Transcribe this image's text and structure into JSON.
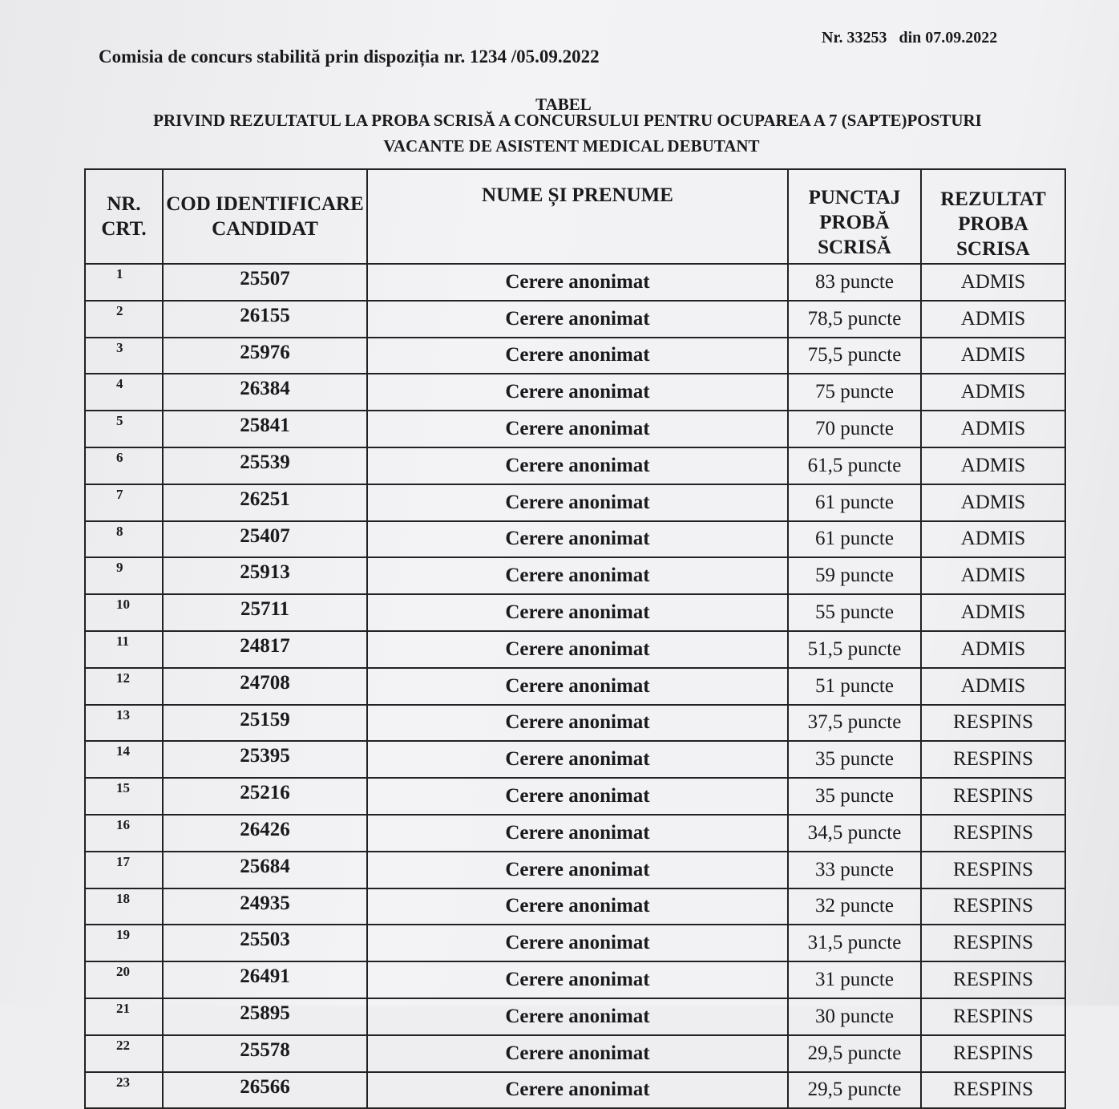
{
  "header": {
    "doc_number": "Nr. 33253   din 07.09.2022",
    "commission": "Comisia de concurs stabilită prin dispoziția nr. 1234 /05.09.2022",
    "title": "TABEL",
    "subtitle_line1": "PRIVIND REZULTATUL LA PROBA SCRISĂ A CONCURSULUI PENTRU OCUPAREA A 7 (SAPTE)POSTURI",
    "subtitle_line2": "VACANTE DE ASISTENT MEDICAL DEBUTANT"
  },
  "table": {
    "columns": [
      "NR. CRT.",
      "COD IDENTIFICARE CANDIDAT",
      "NUME ȘI PRENUME",
      "PUNCTAJ PROBĂ SCRISĂ",
      "REZULTAT PROBA SCRISA"
    ],
    "rows": [
      [
        "1",
        "25507",
        "Cerere anonimat",
        "83 puncte",
        "ADMIS"
      ],
      [
        "2",
        "26155",
        "Cerere anonimat",
        "78,5 puncte",
        "ADMIS"
      ],
      [
        "3",
        "25976",
        "Cerere anonimat",
        "75,5 puncte",
        "ADMIS"
      ],
      [
        "4",
        "26384",
        "Cerere anonimat",
        "75 puncte",
        "ADMIS"
      ],
      [
        "5",
        "25841",
        "Cerere anonimat",
        "70 puncte",
        "ADMIS"
      ],
      [
        "6",
        "25539",
        "Cerere anonimat",
        "61,5 puncte",
        "ADMIS"
      ],
      [
        "7",
        "26251",
        "Cerere anonimat",
        "61 puncte",
        "ADMIS"
      ],
      [
        "8",
        "25407",
        "Cerere anonimat",
        "61 puncte",
        "ADMIS"
      ],
      [
        "9",
        "25913",
        "Cerere anonimat",
        "59 puncte",
        "ADMIS"
      ],
      [
        "10",
        "25711",
        "Cerere anonimat",
        "55 puncte",
        "ADMIS"
      ],
      [
        "11",
        "24817",
        "Cerere anonimat",
        "51,5 puncte",
        "ADMIS"
      ],
      [
        "12",
        "24708",
        "Cerere anonimat",
        "51 puncte",
        "ADMIS"
      ],
      [
        "13",
        "25159",
        "Cerere anonimat",
        "37,5 puncte",
        "RESPINS"
      ],
      [
        "14",
        "25395",
        "Cerere anonimat",
        "35 puncte",
        "RESPINS"
      ],
      [
        "15",
        "25216",
        "Cerere anonimat",
        "35 puncte",
        "RESPINS"
      ],
      [
        "16",
        "26426",
        "Cerere anonimat",
        "34,5 puncte",
        "RESPINS"
      ],
      [
        "17",
        "25684",
        "Cerere anonimat",
        "33 puncte",
        "RESPINS"
      ],
      [
        "18",
        "24935",
        "Cerere anonimat",
        "32 puncte",
        "RESPINS"
      ],
      [
        "19",
        "25503",
        "Cerere anonimat",
        "31,5 puncte",
        "RESPINS"
      ],
      [
        "20",
        "26491",
        "Cerere anonimat",
        "31 puncte",
        "RESPINS"
      ],
      [
        "21",
        "25895",
        "Cerere anonimat",
        "30 puncte",
        "RESPINS"
      ],
      [
        "22",
        "25578",
        "Cerere anonimat",
        "29,5 puncte",
        "RESPINS"
      ],
      [
        "23",
        "26566",
        "Cerere anonimat",
        "29,5 puncte",
        "RESPINS"
      ]
    ]
  }
}
